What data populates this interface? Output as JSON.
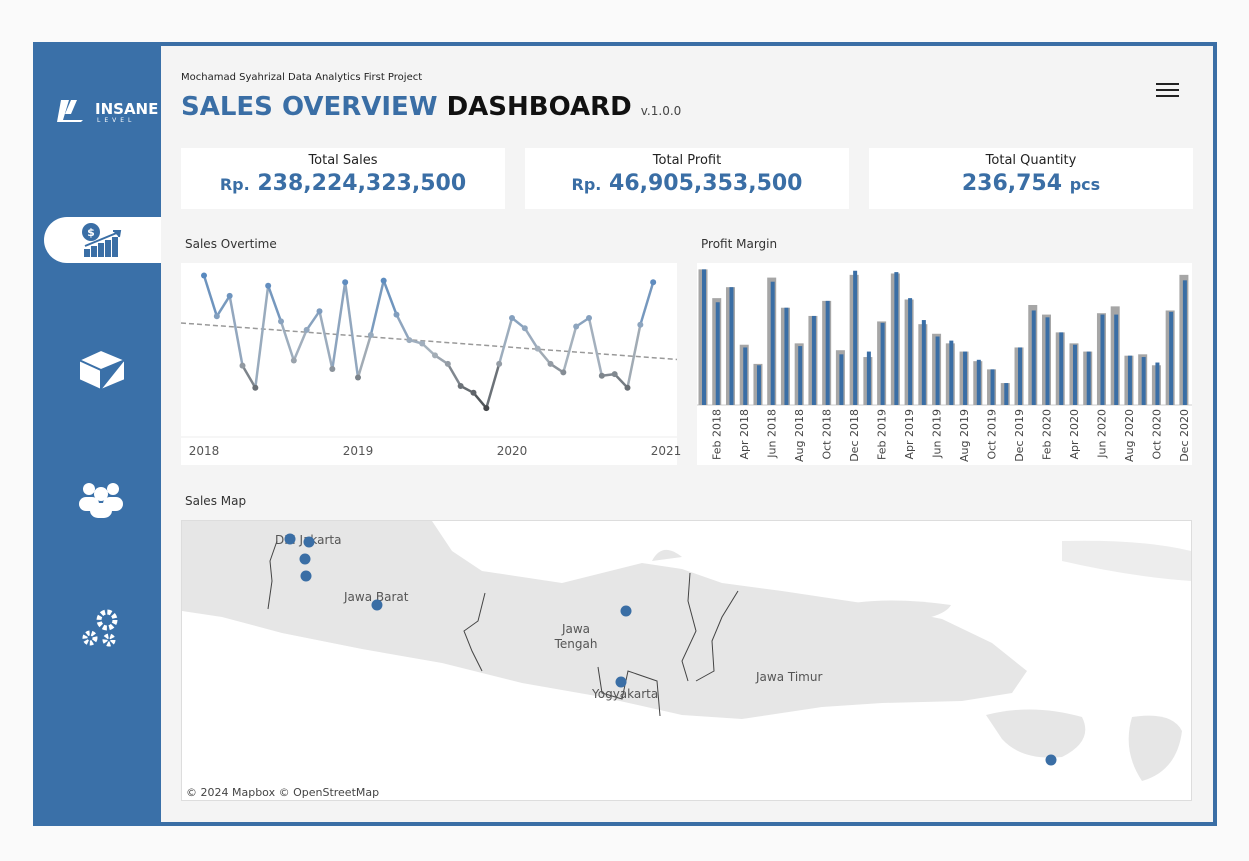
{
  "sidebar": {
    "logo": "INSANE",
    "logo_sub": "LEVEL"
  },
  "header": {
    "subtitle": "Mochamad Syahrizal Data Analytics First Project",
    "title_blue": "SALES OVERVIEW",
    "title_black": "DASHBOARD",
    "version": "v.1.0.0"
  },
  "kpis": [
    {
      "label": "Total Sales",
      "prefix": "Rp.",
      "value": "238,224,323,500"
    },
    {
      "label": "Total Profit",
      "prefix": "Rp.",
      "value": "46,905,353,500"
    },
    {
      "label": "Total Quantity",
      "value": "236,754",
      "suffix": "pcs"
    }
  ],
  "chart_data": [
    {
      "type": "line",
      "title": "Sales Overtime",
      "xlim": [
        2018,
        2021
      ],
      "xticks": [
        2018,
        2019,
        2020,
        2021
      ],
      "ylim": [
        0,
        100
      ],
      "trendline": true,
      "values": [
        95,
        71,
        83,
        42,
        29,
        89,
        68,
        45,
        63,
        74,
        40,
        91,
        35,
        60,
        92,
        72,
        57,
        55,
        48,
        43,
        30,
        26,
        17,
        43,
        70,
        64,
        52,
        43,
        38,
        65,
        70,
        36,
        37,
        29,
        66,
        91
      ]
    },
    {
      "type": "bar",
      "title": "Profit Margin",
      "ylim": [
        0,
        100
      ],
      "categories": [
        null,
        "Feb 2018",
        null,
        "Apr 2018",
        null,
        "Jun 2018",
        null,
        "Aug 2018",
        null,
        "Oct 2018",
        null,
        "Dec 2018",
        null,
        "Feb 2019",
        null,
        "Apr 2019",
        null,
        "Jun 2019",
        null,
        "Aug 2019",
        null,
        "Oct 2019",
        null,
        "Dec 2019",
        null,
        "Feb 2020",
        null,
        "Apr 2020",
        null,
        "Jun 2020",
        null,
        "Aug 2020",
        null,
        "Oct 2020",
        null,
        "Dec 2020"
      ],
      "series": [
        {
          "color": "#a6a6a6",
          "values": [
            99,
            78,
            86,
            44,
            30,
            93,
            71,
            45,
            65,
            76,
            40,
            95,
            35,
            61,
            96,
            77,
            59,
            52,
            45,
            39,
            32,
            26,
            16,
            42,
            73,
            66,
            53,
            45,
            39,
            67,
            72,
            36,
            37,
            29,
            69,
            95
          ]
        },
        {
          "color": "#3a6ea5",
          "values": [
            99,
            75,
            86,
            42,
            29,
            90,
            71,
            43,
            65,
            76,
            37,
            98,
            39,
            60,
            97,
            78,
            62,
            50,
            47,
            39,
            33,
            26,
            16,
            42,
            69,
            64,
            53,
            44,
            39,
            66,
            66,
            36,
            35,
            31,
            68,
            91
          ]
        }
      ]
    }
  ],
  "map": {
    "title": "Sales Map",
    "labels": [
      "DKI Jakarta",
      "Jawa Barat",
      "Jawa",
      "Tengah",
      "Yogyakarta",
      "Jawa Timur"
    ],
    "credit": "© 2024 Mapbox  © OpenStreetMap"
  }
}
